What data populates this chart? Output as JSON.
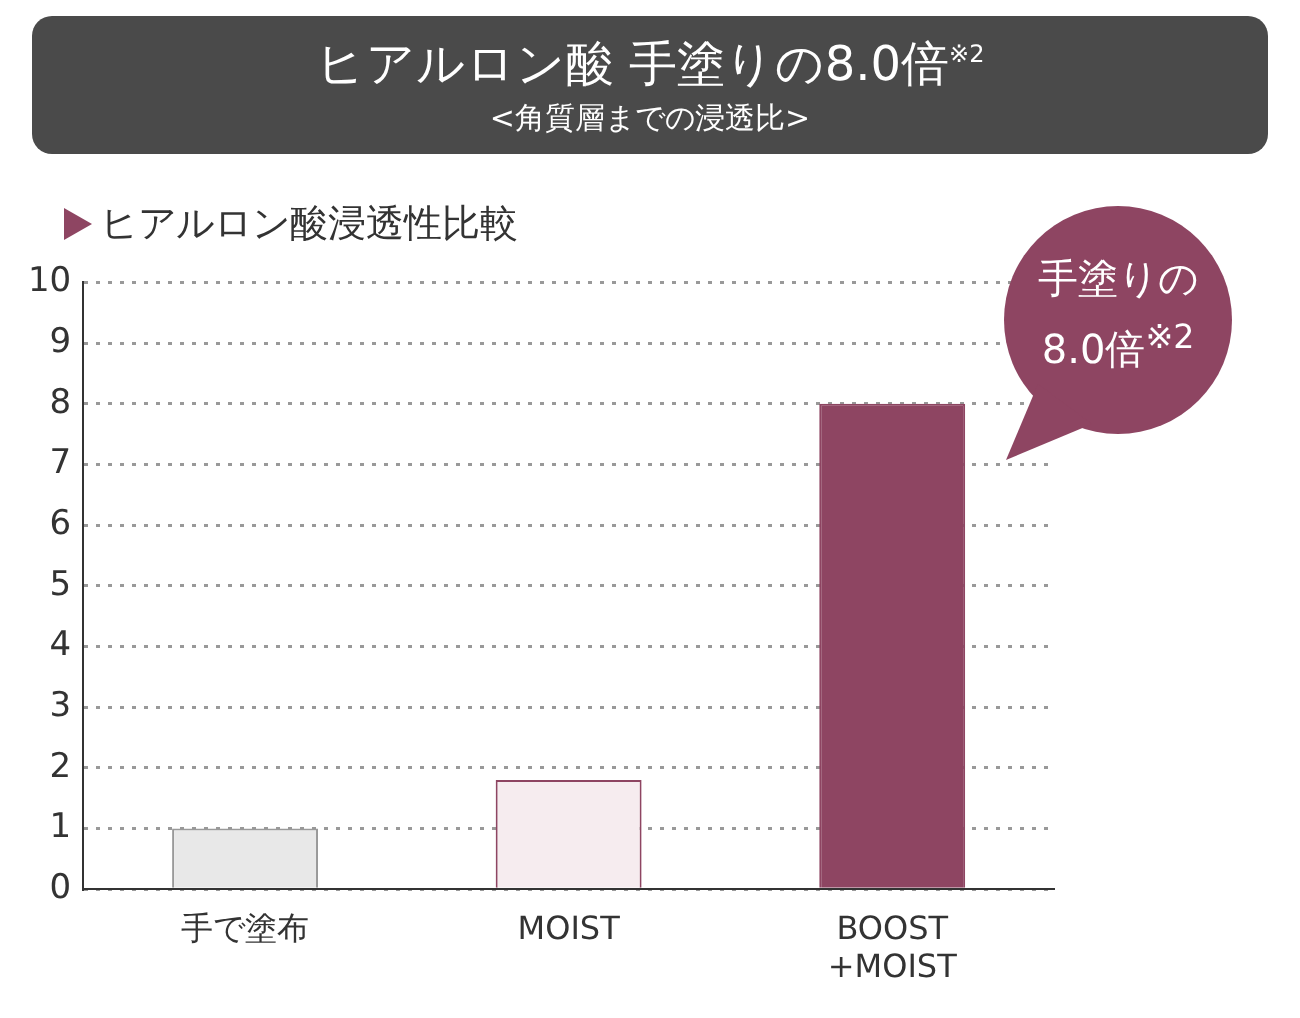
{
  "chart_data": {
    "type": "bar",
    "title": "ヒアルロン酸 手塗りの8.0倍$^{※2}$",
    "subtitle": "<角質層までの浸透比>",
    "annotations": [
      "ヒアルロン酸浸透性比較",
      "手塗りの\n8.0倍$^{※2}$"
    ],
    "categories": [
      "手で塗布",
      "MOIST",
      "BOOST\n+MOIST"
    ],
    "values": [
      1,
      1.8,
      8
    ],
    "colors": [
      "#e8e8e8",
      "#f6ecef",
      "#8e4562"
    ],
    "ylim": [
      0,
      10
    ],
    "yticks": [
      0,
      1,
      2,
      3,
      4,
      5,
      6,
      7,
      8,
      9,
      10
    ],
    "grid": "y",
    "legend": false
  }
}
